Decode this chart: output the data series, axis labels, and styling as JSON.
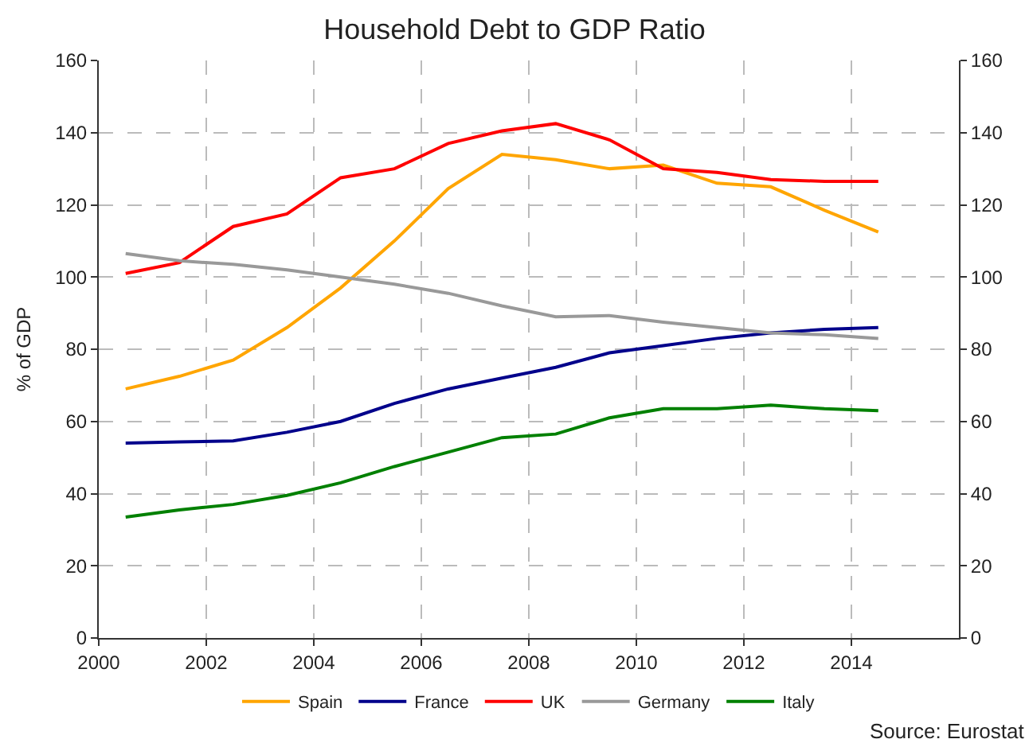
{
  "chart_data": {
    "type": "line",
    "title": "Household Debt to GDP Ratio",
    "ylabel": "% of GDP",
    "x": [
      2000.5,
      2001.5,
      2002.5,
      2003.5,
      2004.5,
      2005.5,
      2006.5,
      2007.5,
      2008.5,
      2009.5,
      2010.5,
      2011.5,
      2012.5,
      2013.5,
      2014.5
    ],
    "series": [
      {
        "name": "Spain",
        "color": "#ffa500",
        "values": [
          69,
          72.5,
          77,
          86,
          97,
          110,
          124.5,
          134,
          132.5,
          130,
          131,
          126,
          125,
          118.5,
          112.5
        ]
      },
      {
        "name": "France",
        "color": "#00008b",
        "values": [
          54,
          54.3,
          54.6,
          57,
          60,
          65,
          69,
          72,
          75,
          79,
          81,
          83,
          84.5,
          85.5,
          86
        ]
      },
      {
        "name": "UK",
        "color": "#ff0000",
        "values": [
          101,
          104,
          114,
          117.5,
          127.5,
          130,
          137,
          140.5,
          142.5,
          138,
          130,
          129,
          127,
          126.5,
          126.5
        ]
      },
      {
        "name": "Germany",
        "color": "#999999",
        "values": [
          106.5,
          104.5,
          103.5,
          102,
          100,
          98,
          95.5,
          92,
          89,
          89.3,
          87.5,
          86,
          84.5,
          84,
          83
        ]
      },
      {
        "name": "Italy",
        "color": "#008000",
        "values": [
          33.5,
          35.5,
          37,
          39.5,
          43,
          47.5,
          51.5,
          55.5,
          56.5,
          61,
          63.5,
          63.5,
          64.5,
          63.5,
          63
        ]
      }
    ],
    "xlim": [
      2000,
      2016
    ],
    "xticks": [
      2000,
      2002,
      2004,
      2006,
      2008,
      2010,
      2012,
      2014
    ],
    "ylim": [
      0,
      160
    ],
    "yticks": [
      0,
      20,
      40,
      60,
      80,
      100,
      120,
      140,
      160
    ],
    "y2lim": [
      0,
      160
    ],
    "y2ticks": [
      0,
      20,
      40,
      60,
      80,
      100,
      120,
      140,
      160
    ],
    "grid": true,
    "legend": "bottom",
    "line_style": "solid",
    "marker": "none",
    "annotations": [
      "Source: Eurostat"
    ]
  }
}
